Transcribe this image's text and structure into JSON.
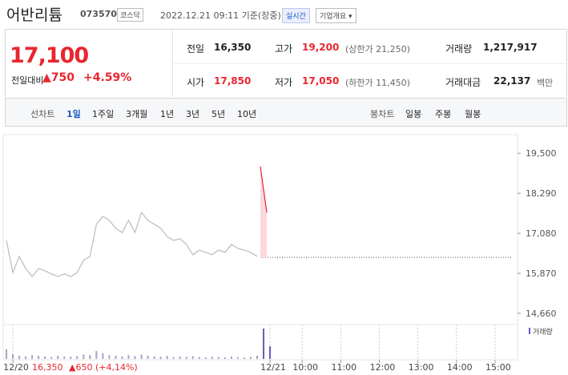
{
  "header": {
    "name": "어반리튬",
    "code": "073570",
    "market": "코스닥",
    "timestamp": "2022.12.21 09:11 기준(장중)",
    "realtime": "실시간",
    "overview": "기업개요"
  },
  "quote": {
    "price": "17,100",
    "change_label": "전일대비",
    "change": "▲750",
    "change_pct": "+4.59%",
    "stats": [
      {
        "label": "전일",
        "value": "16,350"
      },
      {
        "label": "고가",
        "value": "19,200",
        "extra": "(상한가 21,250)"
      },
      {
        "label": "거래량",
        "value": "1,217,917"
      },
      {
        "label": "시가",
        "value": "17,850"
      },
      {
        "label": "저가",
        "value": "17,050",
        "extra": "(하한가 11,450)"
      },
      {
        "label": "거래대금",
        "value": "22,137",
        "extra": "백만"
      }
    ]
  },
  "tabs": {
    "line_label": "선차트",
    "line": [
      "1일",
      "1주일",
      "3개월",
      "1년",
      "3년",
      "5년",
      "10년"
    ],
    "candle_label": "봉차트",
    "candle": [
      "일봉",
      "주봉",
      "월봉"
    ]
  },
  "chart_data": {
    "type": "line",
    "categories": [
      null,
      "12/20",
      null,
      null,
      null,
      null,
      null,
      null,
      null,
      null,
      null,
      null,
      null,
      null,
      null,
      null,
      null,
      null,
      null,
      null,
      null,
      null,
      null,
      null,
      null,
      null,
      null,
      null,
      null,
      null,
      null,
      null,
      null,
      null,
      null,
      null,
      null,
      null,
      null,
      null,
      null,
      "12/21",
      null,
      null,
      null,
      null,
      "10:00",
      null,
      null,
      null,
      null,
      null,
      "11:00",
      null,
      null,
      null,
      null,
      null,
      "12:00",
      null,
      null,
      null,
      null,
      null,
      "13:00",
      null,
      null,
      null,
      null,
      null,
      "14:00",
      null,
      null,
      null,
      null,
      null,
      "15:00",
      null,
      null,
      null
    ],
    "series": [
      {
        "color": "#bbbbbb",
        "values": [
          16860,
          15890,
          16380,
          16010,
          15770,
          16010,
          15940,
          15850,
          15770,
          15850,
          15770,
          15890,
          16260,
          16380,
          17350,
          17590,
          17470,
          17230,
          17100,
          17470,
          17100,
          17710,
          17470,
          17350,
          17230,
          16980,
          16860,
          16910,
          16740,
          16430,
          16570,
          16500,
          16430,
          16570,
          16500,
          16740,
          16620,
          16570,
          16500,
          16380,
          null,
          null,
          null,
          null,
          null,
          null,
          null,
          null,
          null,
          null,
          null,
          null,
          null,
          null,
          null,
          null,
          null,
          null,
          null,
          null,
          null,
          null,
          null,
          null,
          null,
          null,
          null,
          null,
          null,
          null,
          null,
          null,
          null,
          null,
          null,
          null,
          null,
          null,
          null,
          null
        ]
      },
      {
        "color": "#e8262f",
        "values": [
          null,
          null,
          null,
          null,
          null,
          null,
          null,
          null,
          null,
          null,
          null,
          null,
          null,
          null,
          null,
          null,
          null,
          null,
          null,
          null,
          null,
          null,
          null,
          null,
          null,
          null,
          null,
          null,
          null,
          null,
          null,
          null,
          null,
          null,
          null,
          null,
          null,
          null,
          null,
          null,
          19100,
          17700,
          null,
          null,
          null,
          null,
          null,
          null,
          null,
          null,
          null,
          null,
          null,
          null,
          null,
          null,
          null,
          null,
          null,
          null,
          null,
          null,
          null,
          null,
          null,
          null,
          null,
          null,
          null,
          null,
          null,
          null,
          null,
          null,
          null,
          null,
          null,
          null,
          null,
          null
        ]
      }
    ],
    "reference_value": 16350,
    "ylim": [
      14440,
      19820
    ],
    "yticks": [
      {
        "value": 19500,
        "label": "19,500"
      },
      {
        "value": 18290,
        "label": "18,290"
      },
      {
        "value": 17080,
        "label": "17,080"
      },
      {
        "value": 15870,
        "label": "15,870"
      },
      {
        "value": 14660,
        "label": "14,660"
      }
    ],
    "volume": {
      "name": "거래량",
      "color": "#a3a3c8",
      "ylim": [
        0,
        100
      ],
      "values": [
        30,
        15,
        10,
        8,
        12,
        10,
        8,
        6,
        10,
        8,
        7,
        9,
        14,
        12,
        25,
        18,
        12,
        10,
        8,
        12,
        9,
        14,
        10,
        8,
        7,
        10,
        6,
        8,
        7,
        9,
        6,
        5,
        7,
        6,
        5,
        8,
        6,
        5,
        7,
        10,
        95,
        40,
        null,
        null,
        null,
        null,
        null,
        null,
        null,
        null,
        null,
        null,
        null,
        null,
        null,
        null,
        null,
        null,
        null,
        null,
        null,
        null,
        null,
        null,
        null,
        null,
        null,
        null,
        null,
        null,
        null,
        null,
        null,
        null,
        null,
        null,
        null,
        null,
        null,
        null
      ]
    },
    "footer": {
      "price": "16,350",
      "change": "▲650 (+4,14%)"
    }
  }
}
